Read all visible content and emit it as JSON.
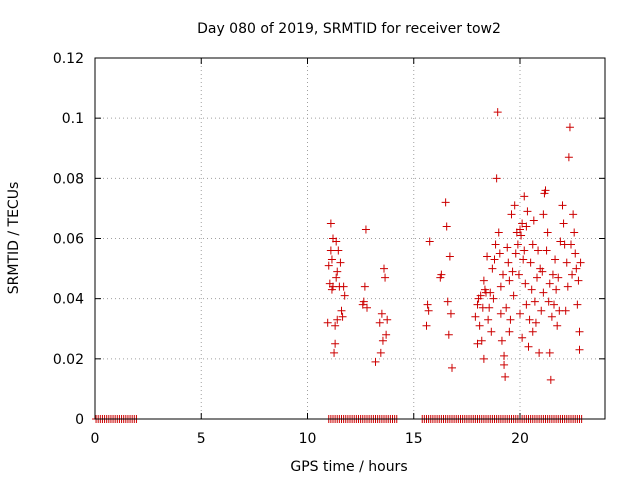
{
  "chart_data": {
    "type": "scatter",
    "title": "Day 080 of 2019, SRMTID for receiver tow2",
    "xlabel": "GPS time / hours",
    "ylabel": "SRMTID / TECUs",
    "xlim": [
      0,
      24
    ],
    "ylim": [
      0,
      0.12
    ],
    "xticks": [
      0,
      5,
      10,
      15,
      20
    ],
    "xtick_labels": [
      "0",
      "5",
      "10",
      "15",
      "20"
    ],
    "yticks": [
      0,
      0.02,
      0.04,
      0.06,
      0.08,
      0.1,
      0.12
    ],
    "ytick_labels": [
      "0",
      "0.02",
      "0.04",
      "0.06",
      "0.08",
      "0.1",
      "0.12"
    ],
    "grid": true,
    "marker": "+",
    "color": "#cc0000",
    "series": [
      {
        "name": "SRMTID",
        "points": [
          [
            0.05,
            0
          ],
          [
            0.15,
            0
          ],
          [
            0.25,
            0
          ],
          [
            0.35,
            0
          ],
          [
            0.45,
            0
          ],
          [
            0.55,
            0
          ],
          [
            0.65,
            0
          ],
          [
            0.75,
            0
          ],
          [
            0.85,
            0
          ],
          [
            0.95,
            0
          ],
          [
            1.05,
            0
          ],
          [
            1.15,
            0
          ],
          [
            1.25,
            0
          ],
          [
            1.35,
            0
          ],
          [
            1.45,
            0
          ],
          [
            1.55,
            0
          ],
          [
            1.65,
            0
          ],
          [
            1.75,
            0
          ],
          [
            1.85,
            0
          ],
          [
            1.95,
            0
          ],
          [
            11.0,
            0
          ],
          [
            11.1,
            0
          ],
          [
            11.2,
            0
          ],
          [
            11.3,
            0
          ],
          [
            11.4,
            0
          ],
          [
            11.5,
            0
          ],
          [
            11.6,
            0
          ],
          [
            11.7,
            0
          ],
          [
            11.8,
            0
          ],
          [
            11.9,
            0
          ],
          [
            12.0,
            0
          ],
          [
            12.1,
            0
          ],
          [
            12.2,
            0
          ],
          [
            12.3,
            0
          ],
          [
            12.4,
            0
          ],
          [
            12.5,
            0
          ],
          [
            12.6,
            0
          ],
          [
            12.7,
            0
          ],
          [
            12.8,
            0
          ],
          [
            12.9,
            0
          ],
          [
            13.0,
            0
          ],
          [
            13.1,
            0
          ],
          [
            13.2,
            0
          ],
          [
            13.3,
            0
          ],
          [
            13.4,
            0
          ],
          [
            13.5,
            0
          ],
          [
            13.6,
            0
          ],
          [
            13.7,
            0
          ],
          [
            13.8,
            0
          ],
          [
            13.9,
            0
          ],
          [
            14.0,
            0
          ],
          [
            14.1,
            0
          ],
          [
            14.2,
            0
          ],
          [
            15.4,
            0
          ],
          [
            15.5,
            0
          ],
          [
            15.6,
            0
          ],
          [
            15.7,
            0
          ],
          [
            15.8,
            0
          ],
          [
            15.9,
            0
          ],
          [
            16.0,
            0
          ],
          [
            16.1,
            0
          ],
          [
            16.2,
            0
          ],
          [
            16.3,
            0
          ],
          [
            16.4,
            0
          ],
          [
            16.5,
            0
          ],
          [
            16.6,
            0
          ],
          [
            16.7,
            0
          ],
          [
            16.8,
            0
          ],
          [
            16.9,
            0
          ],
          [
            17.0,
            0
          ],
          [
            17.1,
            0
          ],
          [
            17.2,
            0
          ],
          [
            17.3,
            0
          ],
          [
            17.4,
            0
          ],
          [
            17.5,
            0
          ],
          [
            17.6,
            0
          ],
          [
            17.7,
            0
          ],
          [
            17.8,
            0
          ],
          [
            17.9,
            0
          ],
          [
            18.0,
            0
          ],
          [
            18.1,
            0
          ],
          [
            18.2,
            0
          ],
          [
            18.3,
            0
          ],
          [
            18.4,
            0
          ],
          [
            18.5,
            0
          ],
          [
            18.6,
            0
          ],
          [
            18.7,
            0
          ],
          [
            18.8,
            0
          ],
          [
            18.9,
            0
          ],
          [
            19.0,
            0
          ],
          [
            19.1,
            0
          ],
          [
            19.2,
            0
          ],
          [
            19.3,
            0
          ],
          [
            19.4,
            0
          ],
          [
            19.5,
            0
          ],
          [
            19.6,
            0
          ],
          [
            19.7,
            0
          ],
          [
            19.8,
            0
          ],
          [
            19.9,
            0
          ],
          [
            20.0,
            0
          ],
          [
            20.1,
            0
          ],
          [
            20.2,
            0
          ],
          [
            20.3,
            0
          ],
          [
            20.4,
            0
          ],
          [
            20.5,
            0
          ],
          [
            20.6,
            0
          ],
          [
            20.7,
            0
          ],
          [
            20.8,
            0
          ],
          [
            20.9,
            0
          ],
          [
            21.0,
            0
          ],
          [
            21.1,
            0
          ],
          [
            21.2,
            0
          ],
          [
            21.3,
            0
          ],
          [
            21.4,
            0
          ],
          [
            21.5,
            0
          ],
          [
            21.6,
            0
          ],
          [
            21.7,
            0
          ],
          [
            21.8,
            0
          ],
          [
            21.9,
            0
          ],
          [
            22.0,
            0
          ],
          [
            22.1,
            0
          ],
          [
            22.2,
            0
          ],
          [
            22.3,
            0
          ],
          [
            22.4,
            0
          ],
          [
            22.5,
            0
          ],
          [
            22.6,
            0
          ],
          [
            22.7,
            0
          ],
          [
            22.8,
            0
          ],
          [
            22.9,
            0
          ],
          [
            10.95,
            0.032
          ],
          [
            11.0,
            0.051
          ],
          [
            11.05,
            0.045
          ],
          [
            11.1,
            0.065
          ],
          [
            11.1,
            0.056
          ],
          [
            11.15,
            0.043
          ],
          [
            11.15,
            0.053
          ],
          [
            11.2,
            0.06
          ],
          [
            11.2,
            0.044
          ],
          [
            11.25,
            0.022
          ],
          [
            11.3,
            0.025
          ],
          [
            11.3,
            0.031
          ],
          [
            11.35,
            0.047
          ],
          [
            11.35,
            0.059
          ],
          [
            11.4,
            0.049
          ],
          [
            11.4,
            0.033
          ],
          [
            11.45,
            0.056
          ],
          [
            11.5,
            0.044
          ],
          [
            11.55,
            0.052
          ],
          [
            11.6,
            0.036
          ],
          [
            11.65,
            0.034
          ],
          [
            11.7,
            0.044
          ],
          [
            11.75,
            0.041
          ],
          [
            12.6,
            0.038
          ],
          [
            12.65,
            0.039
          ],
          [
            12.7,
            0.044
          ],
          [
            12.75,
            0.063
          ],
          [
            12.8,
            0.037
          ],
          [
            13.2,
            0.019
          ],
          [
            13.4,
            0.032
          ],
          [
            13.45,
            0.022
          ],
          [
            13.5,
            0.035
          ],
          [
            13.55,
            0.026
          ],
          [
            13.6,
            0.05
          ],
          [
            13.65,
            0.047
          ],
          [
            13.7,
            0.028
          ],
          [
            13.75,
            0.033
          ],
          [
            15.6,
            0.031
          ],
          [
            15.65,
            0.038
          ],
          [
            15.7,
            0.036
          ],
          [
            15.75,
            0.059
          ],
          [
            16.25,
            0.047
          ],
          [
            16.3,
            0.048
          ],
          [
            16.5,
            0.072
          ],
          [
            16.55,
            0.064
          ],
          [
            16.6,
            0.039
          ],
          [
            16.65,
            0.028
          ],
          [
            16.7,
            0.054
          ],
          [
            16.75,
            0.035
          ],
          [
            16.8,
            0.017
          ],
          [
            17.9,
            0.034
          ],
          [
            18.0,
            0.038
          ],
          [
            18.0,
            0.025
          ],
          [
            18.05,
            0.04
          ],
          [
            18.1,
            0.031
          ],
          [
            18.15,
            0.041
          ],
          [
            18.2,
            0.026
          ],
          [
            18.25,
            0.037
          ],
          [
            18.3,
            0.046
          ],
          [
            18.3,
            0.02
          ],
          [
            18.35,
            0.043
          ],
          [
            18.4,
            0.042
          ],
          [
            18.45,
            0.054
          ],
          [
            18.5,
            0.033
          ],
          [
            18.55,
            0.037
          ],
          [
            18.6,
            0.042
          ],
          [
            18.65,
            0.029
          ],
          [
            18.7,
            0.05
          ],
          [
            18.75,
            0.04
          ],
          [
            18.8,
            0.053
          ],
          [
            18.85,
            0.058
          ],
          [
            18.9,
            0.08
          ],
          [
            18.95,
            0.102
          ],
          [
            19.0,
            0.062
          ],
          [
            19.05,
            0.055
          ],
          [
            19.1,
            0.044
          ],
          [
            19.1,
            0.035
          ],
          [
            19.15,
            0.026
          ],
          [
            19.2,
            0.048
          ],
          [
            19.25,
            0.021
          ],
          [
            19.25,
            0.018
          ],
          [
            19.3,
            0.014
          ],
          [
            19.35,
            0.037
          ],
          [
            19.4,
            0.057
          ],
          [
            19.45,
            0.052
          ],
          [
            19.5,
            0.046
          ],
          [
            19.5,
            0.029
          ],
          [
            19.55,
            0.033
          ],
          [
            19.6,
            0.068
          ],
          [
            19.65,
            0.049
          ],
          [
            19.7,
            0.041
          ],
          [
            19.75,
            0.071
          ],
          [
            19.8,
            0.055
          ],
          [
            19.85,
            0.062
          ],
          [
            19.9,
            0.058
          ],
          [
            19.95,
            0.048
          ],
          [
            20.0,
            0.063
          ],
          [
            20.0,
            0.035
          ],
          [
            20.05,
            0.061
          ],
          [
            20.1,
            0.065
          ],
          [
            20.1,
            0.027
          ],
          [
            20.15,
            0.053
          ],
          [
            20.2,
            0.074
          ],
          [
            20.2,
            0.056
          ],
          [
            20.25,
            0.045
          ],
          [
            20.3,
            0.038
          ],
          [
            20.3,
            0.064
          ],
          [
            20.35,
            0.069
          ],
          [
            20.4,
            0.024
          ],
          [
            20.45,
            0.033
          ],
          [
            20.5,
            0.052
          ],
          [
            20.55,
            0.043
          ],
          [
            20.6,
            0.058
          ],
          [
            20.6,
            0.029
          ],
          [
            20.65,
            0.066
          ],
          [
            20.7,
            0.039
          ],
          [
            20.75,
            0.032
          ],
          [
            20.8,
            0.047
          ],
          [
            20.85,
            0.056
          ],
          [
            20.9,
            0.022
          ],
          [
            20.95,
            0.05
          ],
          [
            21.0,
            0.036
          ],
          [
            21.05,
            0.049
          ],
          [
            21.1,
            0.042
          ],
          [
            21.1,
            0.068
          ],
          [
            21.15,
            0.075
          ],
          [
            21.2,
            0.076
          ],
          [
            21.25,
            0.056
          ],
          [
            21.3,
            0.062
          ],
          [
            21.35,
            0.039
          ],
          [
            21.4,
            0.045
          ],
          [
            21.4,
            0.022
          ],
          [
            21.45,
            0.013
          ],
          [
            21.5,
            0.034
          ],
          [
            21.55,
            0.048
          ],
          [
            21.6,
            0.038
          ],
          [
            21.65,
            0.053
          ],
          [
            21.7,
            0.043
          ],
          [
            21.75,
            0.031
          ],
          [
            21.8,
            0.047
          ],
          [
            21.85,
            0.036
          ],
          [
            21.9,
            0.059
          ],
          [
            22.0,
            0.071
          ],
          [
            22.05,
            0.065
          ],
          [
            22.1,
            0.058
          ],
          [
            22.15,
            0.036
          ],
          [
            22.2,
            0.052
          ],
          [
            22.25,
            0.044
          ],
          [
            22.3,
            0.087
          ],
          [
            22.35,
            0.097
          ],
          [
            22.4,
            0.058
          ],
          [
            22.45,
            0.048
          ],
          [
            22.5,
            0.068
          ],
          [
            22.55,
            0.062
          ],
          [
            22.6,
            0.055
          ],
          [
            22.65,
            0.05
          ],
          [
            22.7,
            0.038
          ],
          [
            22.75,
            0.046
          ],
          [
            22.8,
            0.029
          ],
          [
            22.8,
            0.023
          ],
          [
            22.85,
            0.052
          ]
        ]
      }
    ]
  }
}
